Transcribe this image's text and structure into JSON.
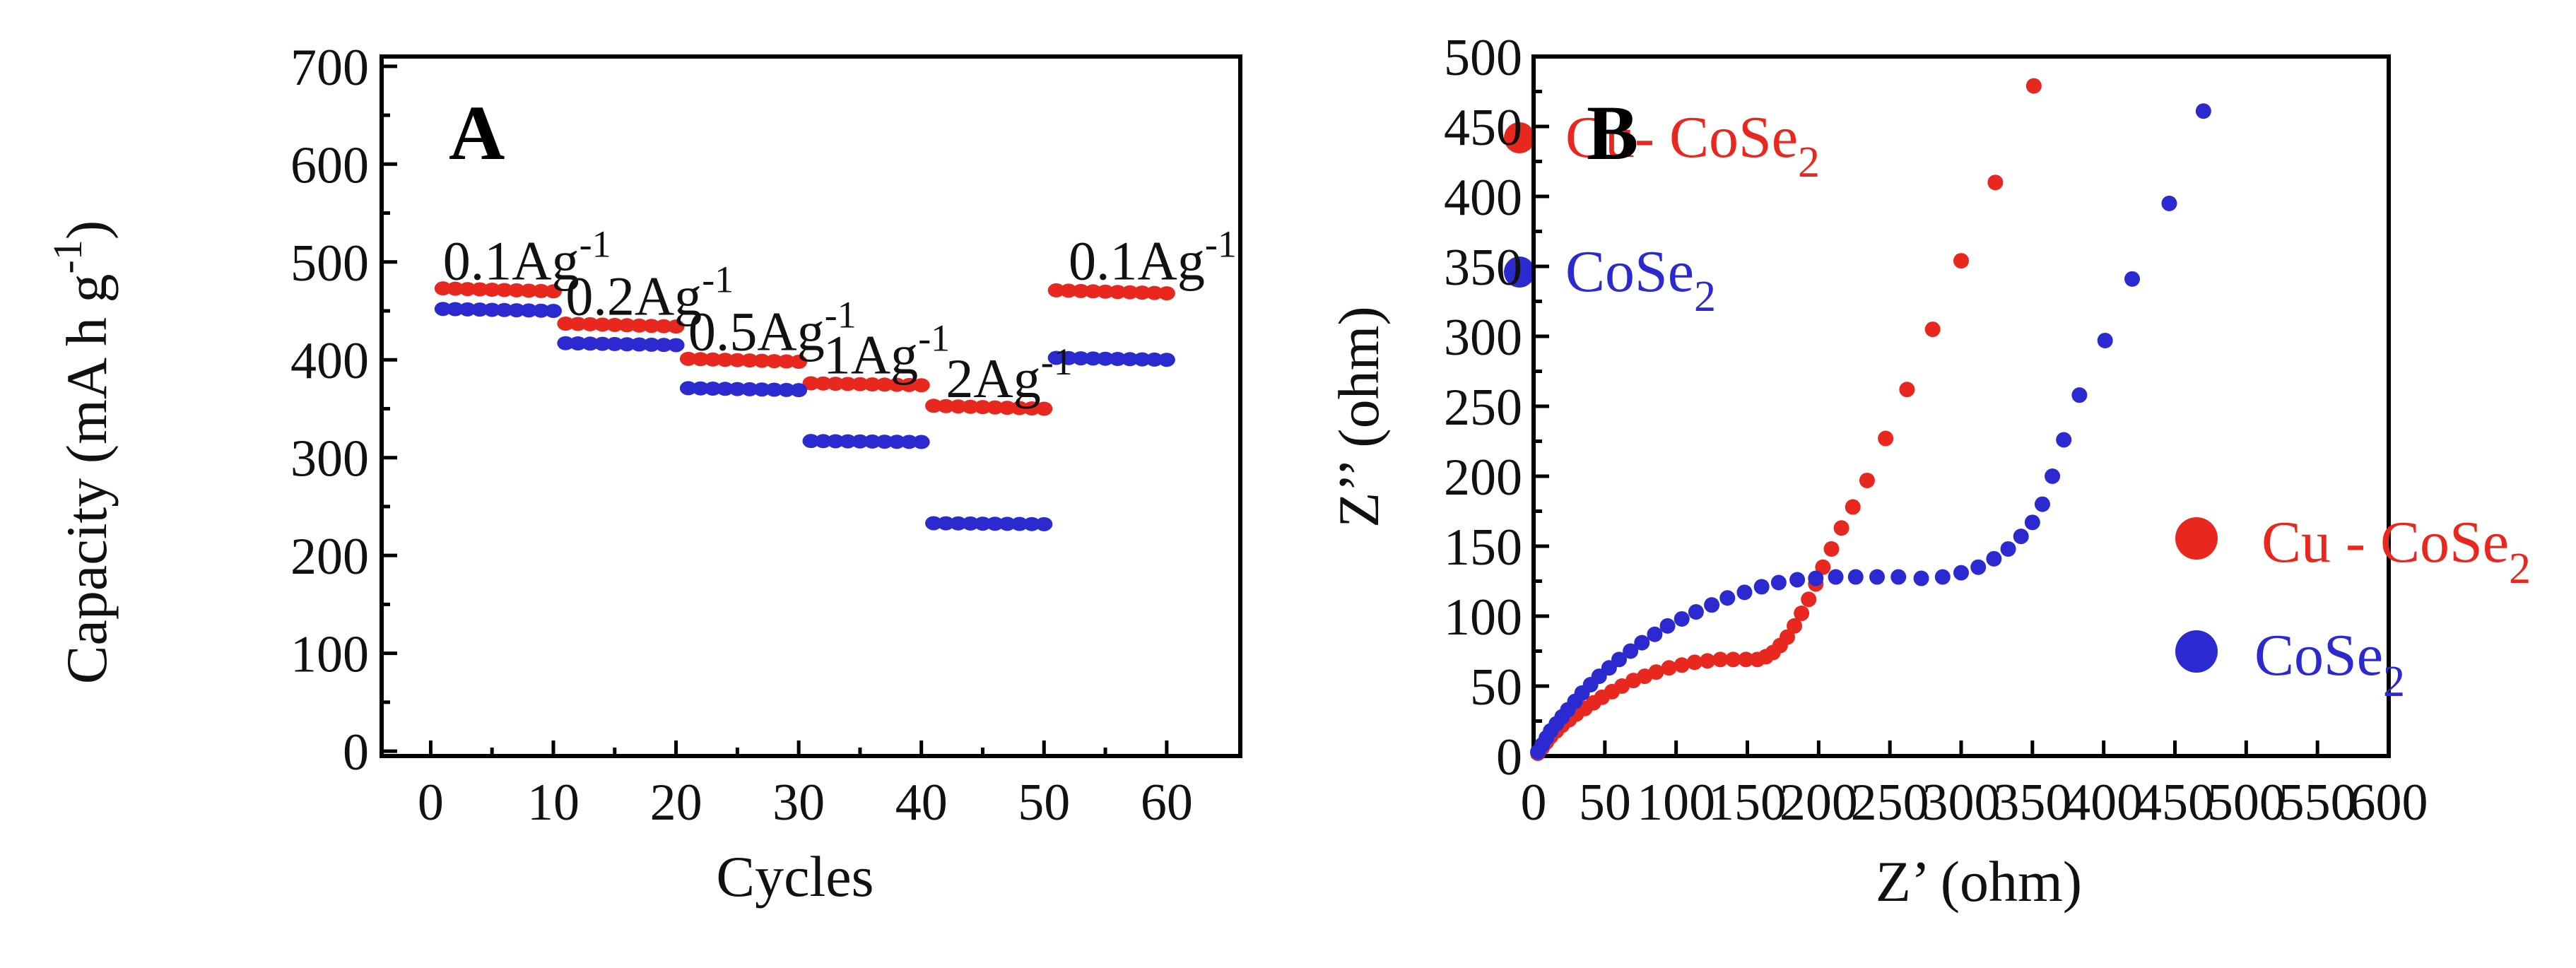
{
  "chart_data": [
    {
      "panel": "A",
      "type": "scatter",
      "xlabel": "Cycles",
      "ylabel": "Capacity (mA h g",
      "ylabel_sup": "-1",
      "ylabel_end": ")",
      "xlim": [
        -4,
        66
      ],
      "ylim": [
        -5,
        710
      ],
      "xticks": [
        0,
        10,
        20,
        30,
        40,
        50,
        60
      ],
      "yticks": [
        0,
        100,
        200,
        300,
        400,
        500,
        600,
        700
      ],
      "legend": [
        {
          "name": "Cu- CoSe",
          "sub": "2",
          "color": "#e8281e"
        },
        {
          "name": "CoSe",
          "sub": "2",
          "color": "#2a2ad0"
        }
      ],
      "rate_labels": [
        {
          "text": "0.1Ag",
          "sup": "-1",
          "x": 1,
          "y": 482
        },
        {
          "text": "0.2Ag",
          "sup": "-1",
          "x": 11,
          "y": 446
        },
        {
          "text": "0.5Ag",
          "sup": "-1",
          "x": 21,
          "y": 410
        },
        {
          "text": "1Ag",
          "sup": "-1",
          "x": 32,
          "y": 386
        },
        {
          "text": "2Ag",
          "sup": "-1",
          "x": 42,
          "y": 362
        },
        {
          "text": "0.1Ag",
          "sup": "-1",
          "x": 52,
          "y": 482
        }
      ],
      "series": [
        {
          "name": "Cu-CoSe2",
          "color": "#e8281e",
          "segments": [
            {
              "start": 1,
              "end": 10,
              "y0": 473,
              "y1": 470
            },
            {
              "start": 11,
              "end": 20,
              "y0": 437,
              "y1": 434
            },
            {
              "start": 21,
              "end": 30,
              "y0": 401,
              "y1": 398
            },
            {
              "start": 31,
              "end": 40,
              "y0": 376,
              "y1": 374
            },
            {
              "start": 41,
              "end": 50,
              "y0": 353,
              "y1": 350
            },
            {
              "start": 51,
              "end": 60,
              "y0": 471,
              "y1": 468
            }
          ]
        },
        {
          "name": "CoSe2",
          "color": "#2a2ad0",
          "segments": [
            {
              "start": 1,
              "end": 10,
              "y0": 452,
              "y1": 450
            },
            {
              "start": 11,
              "end": 20,
              "y0": 417,
              "y1": 415
            },
            {
              "start": 21,
              "end": 30,
              "y0": 371,
              "y1": 369
            },
            {
              "start": 31,
              "end": 40,
              "y0": 317,
              "y1": 316
            },
            {
              "start": 41,
              "end": 50,
              "y0": 233,
              "y1": 232
            },
            {
              "start": 51,
              "end": 60,
              "y0": 402,
              "y1": 400
            }
          ]
        }
      ]
    },
    {
      "panel": "B",
      "type": "scatter",
      "xlabel": "Z’ (ohm)",
      "ylabel": "Z’’ (ohm)",
      "xlim": [
        0,
        600
      ],
      "ylim": [
        0,
        500
      ],
      "xticks": [
        0,
        50,
        100,
        150,
        200,
        250,
        300,
        350,
        400,
        450,
        500,
        550,
        600
      ],
      "yticks": [
        0,
        50,
        100,
        150,
        200,
        250,
        300,
        350,
        400,
        450,
        500
      ],
      "legend": [
        {
          "name": "Cu - CoSe",
          "sub": "2",
          "color": "#e8281e"
        },
        {
          "name": "CoSe",
          "sub": "2",
          "color": "#2a2ad0"
        }
      ],
      "series": [
        {
          "name": "Cu-CoSe2",
          "color": "#e8281e",
          "points": [
            [
              3,
              2
            ],
            [
              6,
              6
            ],
            [
              9,
              10
            ],
            [
              12,
              14
            ],
            [
              16,
              18
            ],
            [
              20,
              22
            ],
            [
              25,
              26
            ],
            [
              30,
              30
            ],
            [
              36,
              34
            ],
            [
              42,
              38
            ],
            [
              48,
              42
            ],
            [
              55,
              46
            ],
            [
              62,
              50
            ],
            [
              70,
              54
            ],
            [
              78,
              57
            ],
            [
              86,
              60
            ],
            [
              95,
              63
            ],
            [
              104,
              65
            ],
            [
              113,
              67
            ],
            [
              122,
              68
            ],
            [
              131,
              69
            ],
            [
              140,
              69
            ],
            [
              149,
              69
            ],
            [
              157,
              69
            ],
            [
              163,
              71
            ],
            [
              168,
              74
            ],
            [
              173,
              79
            ],
            [
              178,
              85
            ],
            [
              183,
              93
            ],
            [
              188,
              102
            ],
            [
              193,
              112
            ],
            [
              198,
              123
            ],
            [
              203,
              135
            ],
            [
              209,
              148
            ],
            [
              216,
              163
            ],
            [
              224,
              178
            ],
            [
              234,
              197
            ],
            [
              247,
              227
            ],
            [
              262,
              262
            ],
            [
              280,
              305
            ],
            [
              300,
              354
            ],
            [
              324,
              410
            ],
            [
              351,
              479
            ]
          ]
        },
        {
          "name": "CoSe2",
          "color": "#2a2ad0",
          "points": [
            [
              3,
              3
            ],
            [
              6,
              8
            ],
            [
              9,
              13
            ],
            [
              12,
              18
            ],
            [
              16,
              23
            ],
            [
              20,
              28
            ],
            [
              24,
              33
            ],
            [
              29,
              39
            ],
            [
              34,
              45
            ],
            [
              40,
              51
            ],
            [
              46,
              57
            ],
            [
              53,
              63
            ],
            [
              60,
              69
            ],
            [
              68,
              75
            ],
            [
              76,
              81
            ],
            [
              85,
              87
            ],
            [
              94,
              93
            ],
            [
              104,
              98
            ],
            [
              114,
              103
            ],
            [
              125,
              108
            ],
            [
              136,
              113
            ],
            [
              148,
              117
            ],
            [
              160,
              121
            ],
            [
              172,
              124
            ],
            [
              185,
              126
            ],
            [
              198,
              127
            ],
            [
              212,
              128
            ],
            [
              226,
              128
            ],
            [
              241,
              128
            ],
            [
              256,
              128
            ],
            [
              272,
              127
            ],
            [
              287,
              128
            ],
            [
              300,
              131
            ],
            [
              312,
              135
            ],
            [
              323,
              141
            ],
            [
              333,
              148
            ],
            [
              342,
              157
            ],
            [
              350,
              167
            ],
            [
              357,
              180
            ],
            [
              364,
              200
            ],
            [
              372,
              226
            ],
            [
              383,
              258
            ],
            [
              401,
              297
            ],
            [
              420,
              341
            ],
            [
              446,
              395
            ],
            [
              470,
              461
            ]
          ]
        }
      ]
    }
  ]
}
